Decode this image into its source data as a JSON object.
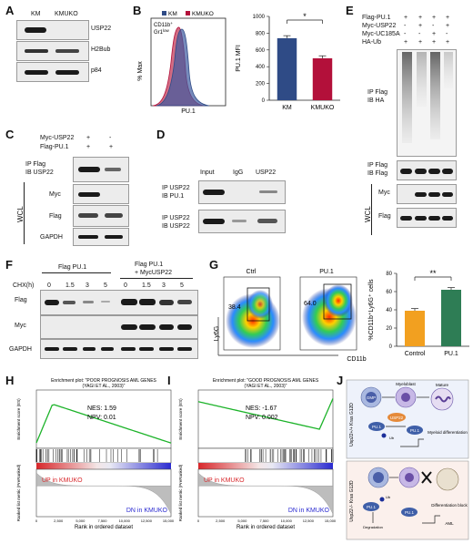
{
  "panel_letters": [
    "A",
    "B",
    "C",
    "D",
    "E",
    "F",
    "G",
    "H",
    "I",
    "J"
  ],
  "A": {
    "lanes": [
      "KM",
      "KMUKO"
    ],
    "rows": [
      "USP22",
      "H2Bub",
      "p84"
    ]
  },
  "B": {
    "hist_gate_line1": "CD11b",
    "hist_gate_line2": "Gr1",
    "hist_legend": [
      "KM",
      "KMUKO"
    ],
    "hist_ylabel": "% Max",
    "hist_xlabel": "PU.1",
    "bar_ylabel": "PU.1 MFI",
    "bar_sig": "*",
    "colors": {
      "KM": "#2f4b86",
      "KMUKO": "#b3103a"
    }
  },
  "C": {
    "cond_rows": [
      {
        "label": "Myc-USP22",
        "marks": [
          "+",
          "-"
        ]
      },
      {
        "label": "Flag-PU.1",
        "marks": [
          "+",
          "+"
        ]
      }
    ],
    "ip_label": [
      "IP Flag",
      "IB USP22"
    ],
    "wcl_label": "WCL",
    "wcl_rows": [
      "Myc",
      "Flag",
      "GAPDH"
    ]
  },
  "D": {
    "lanes": [
      "Input",
      "IgG",
      "USP22"
    ],
    "rows": [
      [
        "IP USP22",
        "IB PU.1"
      ],
      [
        "IP USP22",
        "IB USP22"
      ]
    ]
  },
  "E": {
    "cond_rows": [
      {
        "label": "Flag-PU.1",
        "marks": [
          "+",
          "+",
          "+",
          "+"
        ]
      },
      {
        "label": "Myc-USP22",
        "marks": [
          "-",
          "+",
          "-",
          "+"
        ]
      },
      {
        "label": "Myc-UC185A",
        "marks": [
          "-",
          "-",
          "+",
          "-"
        ]
      },
      {
        "label": "HA-Ub",
        "marks": [
          "+",
          "+",
          "+",
          "+"
        ]
      }
    ],
    "ip1": [
      "IP Flag",
      "IB HA"
    ],
    "ip2": [
      "IP Flag",
      "IB Flag"
    ],
    "wcl_label": "WCL",
    "wcl_rows": [
      "Myc",
      "Flag"
    ]
  },
  "F": {
    "group1": "Flag PU.1",
    "group2_line1": "Flag PU.1",
    "group2_line2": "+ MycUSP22",
    "chx_label": "CHX(h)",
    "timepoints": [
      "0",
      "1.5",
      "3",
      "5",
      "0",
      "1.5",
      "3",
      "5"
    ],
    "rows": [
      "Flag",
      "Myc",
      "GAPDH"
    ]
  },
  "G": {
    "plots": [
      {
        "title": "Ctrl",
        "pct": "38.4"
      },
      {
        "title": "PU.1",
        "pct": "64.0"
      }
    ],
    "ylabel": "Ly6G",
    "xlabel": "CD11b",
    "bar_ylabel": "%CD11b⁺Ly6G⁺ cells",
    "bar_sig": "**",
    "colors": {
      "Control": "#f2a020",
      "PU.1": "#2e7d55"
    }
  },
  "H": {
    "title_line1": "Enrichment plot: \"POOR PROGNOSIS AML GENES",
    "title_line2": "(YAGI ET AL., 2003)\"",
    "nes": "NES: 1.59",
    "npv": "NPV: 0.01",
    "up": "UP in KMUKO",
    "dn": "DN in KMUKO",
    "ylabel_top": "Enrichment score (ES)",
    "ylabel_bottom": "Ranked list metric (PreRanked)",
    "xlabel": "Rank in ordered dataset"
  },
  "I": {
    "title_line1": "Enrichment plot: \"GOOD PROGNOSIS AML GENES",
    "title_line2": "(YAGI ET AL., 2003)\"",
    "nes": "NES: -1.67",
    "npv": "NPV: 0.002",
    "up": "UP in KMUKO",
    "dn": "DN in KMUKO",
    "ylabel_top": "Enrichment score (ES)",
    "ylabel_bottom": "Ranked list metric (PreRanked)",
    "xlabel": "Rank in ordered dataset"
  },
  "J": {
    "top_labels": [
      "GMP",
      "Myeloblast",
      "Mature",
      "PU.1",
      "USP22",
      "PU.1",
      "Ub",
      "Myeloid differentiation"
    ],
    "bottom_labels": [
      "PU.1",
      "Ub",
      "Degradation",
      "PU.1",
      "Differentiation block",
      "AML"
    ],
    "genotype_top": "Usp22+/+ Kras G12D",
    "genotype_bottom": "Usp22-/- Kras G12D"
  },
  "chart_data": [
    {
      "type": "bar",
      "title": "",
      "categories": [
        "KM",
        "KMUKO"
      ],
      "values": [
        740,
        500
      ],
      "ylabel": "PU.1 MFI",
      "ylim": [
        0,
        1000
      ],
      "annotation": "*"
    },
    {
      "type": "bar",
      "title": "",
      "categories": [
        "Control",
        "PU.1"
      ],
      "values": [
        39,
        62
      ],
      "ylabel": "%CD11b⁺Ly6G⁺ cells",
      "ylim": [
        0,
        80
      ],
      "annotation": "**"
    }
  ]
}
